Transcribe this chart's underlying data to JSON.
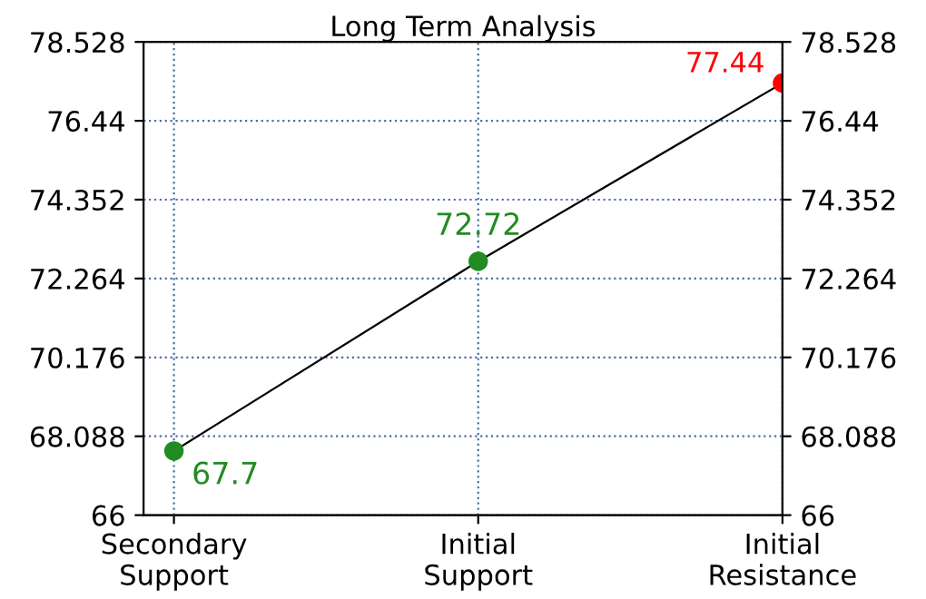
{
  "chart_data": {
    "type": "line",
    "title": "Long Term Analysis",
    "categories": [
      "Secondary\nSupport",
      "Initial\nSupport",
      "Initial\nResistance"
    ],
    "series": [
      {
        "color": "#000000",
        "colors": [
          "#228b22",
          "#228b22",
          "#ff0000"
        ],
        "values": [
          67.7,
          72.72,
          77.44
        ]
      }
    ],
    "data_labels": true,
    "marker": "circle",
    "line_style": "solid",
    "grid": true,
    "ylim": [
      66,
      78.528
    ],
    "yticks": [
      66,
      68.088,
      70.176,
      72.264,
      74.352,
      76.44,
      78.528
    ],
    "y2lim": [
      66,
      78.528
    ],
    "y2ticks": [
      66,
      68.088,
      70.176,
      72.264,
      74.352,
      76.44,
      78.528
    ]
  }
}
